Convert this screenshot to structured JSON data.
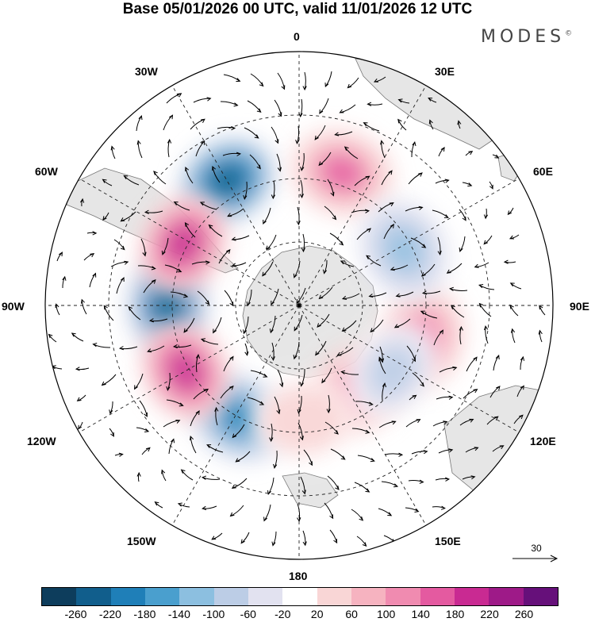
{
  "title": "Base 05/01/2026 00 UTC, valid 11/01/2026 12 UTC",
  "brand": "MODES",
  "brand_mark": "©",
  "longitude_labels": {
    "lon_0": "0",
    "lon_30e": "30E",
    "lon_60e": "60E",
    "lon_90e": "90E",
    "lon_120e": "120E",
    "lon_150e": "150E",
    "lon_180": "180",
    "lon_150w": "150W",
    "lon_120w": "120W",
    "lon_90w": "90W",
    "lon_60w": "60W",
    "lon_30w": "30W"
  },
  "reference_vector": {
    "label": "30"
  },
  "colorbar": {
    "colors": [
      "#0d3d5c",
      "#115e8c",
      "#1f7fb8",
      "#4a9fce",
      "#8cbfe0",
      "#bccde6",
      "#e2e2f0",
      "#ffffff",
      "#f9d6d6",
      "#f6b3c0",
      "#f08bb0",
      "#e45aa0",
      "#c92a92",
      "#9e1a88",
      "#66107a"
    ],
    "ticks": [
      "-260",
      "-220",
      "-180",
      "-140",
      "-100",
      "-60",
      "-20",
      "20",
      "60",
      "100",
      "140",
      "180",
      "220",
      "260"
    ]
  },
  "anomalies": [
    {
      "lon": 330,
      "colat": 34,
      "value": -250
    },
    {
      "lon": 270,
      "colat": 31,
      "value": -240
    },
    {
      "lon": 208,
      "colat": 30,
      "value": -210
    },
    {
      "lon": 18,
      "colat": 33,
      "value": 150
    },
    {
      "lon": 298,
      "colat": 31,
      "value": 220
    },
    {
      "lon": 240,
      "colat": 31,
      "value": 200
    },
    {
      "lon": 105,
      "colat": 30,
      "value": 140
    },
    {
      "lon": 145,
      "colat": 24,
      "value": 120
    },
    {
      "lon": 62,
      "colat": 28,
      "value": -110
    },
    {
      "lon": 125,
      "colat": 27,
      "value": -90
    },
    {
      "lon": 178,
      "colat": 27,
      "value": 60
    }
  ]
}
